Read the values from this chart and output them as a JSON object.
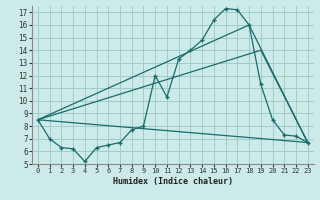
{
  "xlabel": "Humidex (Indice chaleur)",
  "bg_color": "#cceae8",
  "grid_color": "#a0ccca",
  "line_color": "#1a6b6b",
  "xlim": [
    -0.5,
    23.5
  ],
  "ylim": [
    5,
    17.5
  ],
  "xticks": [
    0,
    1,
    2,
    3,
    4,
    5,
    6,
    7,
    8,
    9,
    10,
    11,
    12,
    13,
    14,
    15,
    16,
    17,
    18,
    19,
    20,
    21,
    22,
    23
  ],
  "yticks": [
    5,
    6,
    7,
    8,
    9,
    10,
    11,
    12,
    13,
    14,
    15,
    16,
    17
  ],
  "line1_x": [
    0,
    1,
    2,
    3,
    4,
    5,
    6,
    7,
    8,
    9,
    10,
    11,
    12,
    13,
    14,
    15,
    16,
    17,
    18,
    19,
    20,
    21,
    22,
    23
  ],
  "line1_y": [
    8.5,
    7.0,
    6.3,
    6.2,
    5.2,
    6.3,
    6.5,
    6.7,
    7.7,
    8.0,
    12.0,
    10.3,
    13.3,
    14.0,
    14.8,
    16.4,
    17.3,
    17.2,
    16.0,
    11.3,
    8.5,
    7.3,
    7.2,
    6.7
  ],
  "line2_x": [
    0,
    23
  ],
  "line2_y": [
    8.5,
    6.7
  ],
  "line3_x": [
    0,
    18,
    23
  ],
  "line3_y": [
    8.5,
    16.0,
    6.7
  ],
  "line4_x": [
    0,
    19,
    23
  ],
  "line4_y": [
    8.5,
    14.0,
    6.7
  ]
}
